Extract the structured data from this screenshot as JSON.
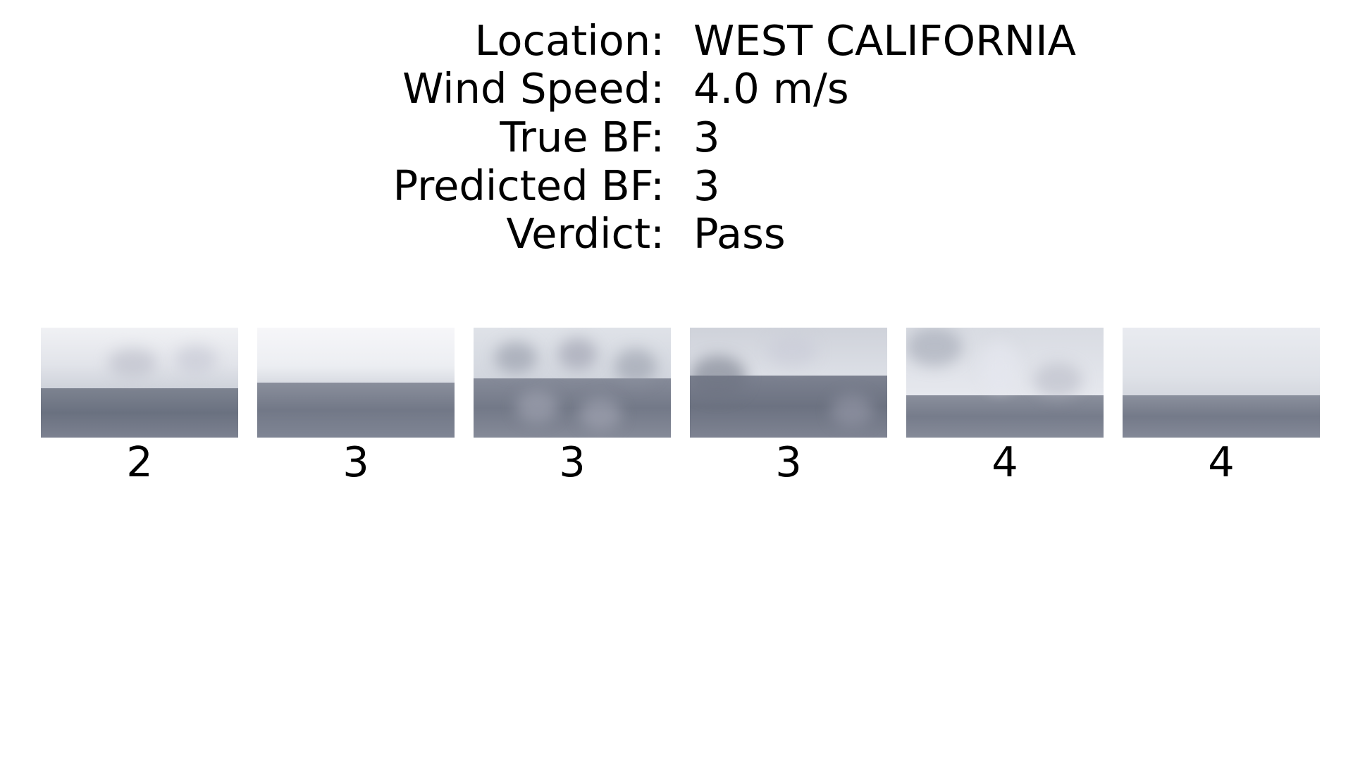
{
  "info": {
    "rows": [
      {
        "label": "Location:",
        "value": "WEST CALIFORNIA"
      },
      {
        "label": "Wind Speed:",
        "value": "4.0 m/s"
      },
      {
        "label": "True BF:",
        "value": "3"
      },
      {
        "label": "Predicted BF:",
        "value": "3"
      },
      {
        "label": "Verdict:",
        "value": "Pass"
      }
    ]
  },
  "thumbnails": [
    {
      "label": "2"
    },
    {
      "label": "3"
    },
    {
      "label": "3"
    },
    {
      "label": "3"
    },
    {
      "label": "4"
    },
    {
      "label": "4"
    }
  ]
}
